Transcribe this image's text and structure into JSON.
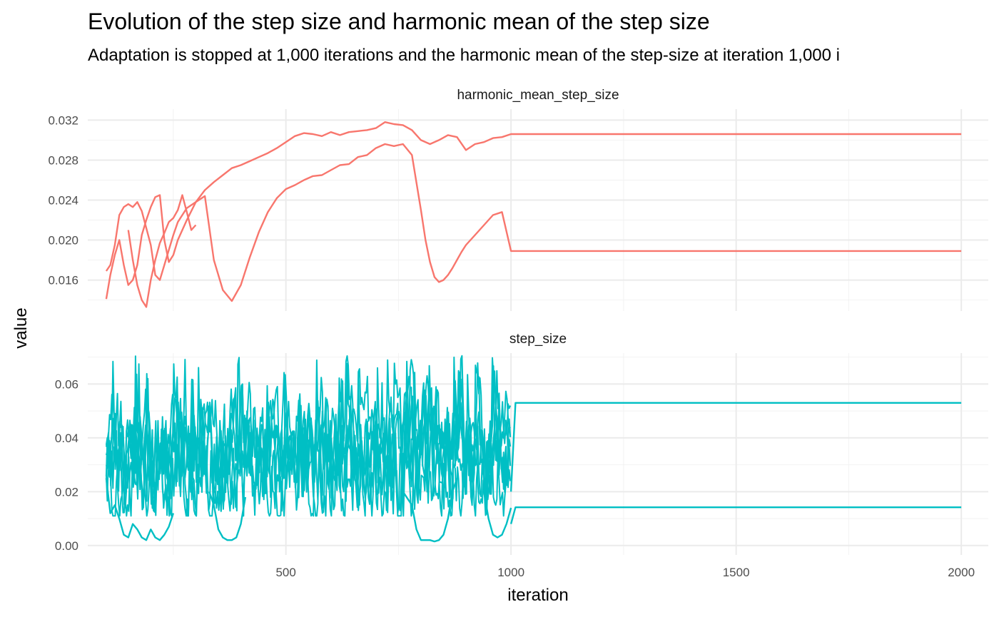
{
  "chart_data": {
    "type": "line",
    "title": "Evolution of the step size and harmonic mean of the step size",
    "subtitle": "Adaptation is stopped at 1,000 iterations and the harmonic mean of the step-size at iteration 1,000 i",
    "xlabel": "iteration",
    "ylabel": "value",
    "xlim": [
      60,
      2060
    ],
    "x_ticks": [
      500,
      1000,
      1500,
      2000
    ],
    "grid": true,
    "legend": "none",
    "panels": [
      {
        "strip": "harmonic_mean_step_size",
        "color": "#F8766D",
        "ylim": [
          0.0129,
          0.0331
        ],
        "y_ticks": [
          0.016,
          0.02,
          0.024,
          0.028,
          0.032
        ],
        "y_tick_labels": [
          "0.016",
          "0.020",
          "0.024",
          "0.028",
          "0.032"
        ],
        "series": [
          {
            "chain": 1,
            "x": [
              101,
              110,
              120,
              130,
              140,
              150,
              160,
              170,
              180,
              190,
              200,
              210,
              220,
              230,
              240,
              250,
              260,
              280,
              300,
              320,
              340,
              360,
              380,
              400,
              420,
              440,
              460,
              480,
              500,
              520,
              540,
              560,
              580,
              600,
              620,
              640,
              660,
              680,
              700,
              720,
              740,
              760,
              780,
              800,
              810,
              820,
              830,
              840,
              850,
              860,
              870,
              880,
              890,
              900,
              920,
              940,
              960,
              980,
              1000,
              1100,
              1300,
              1500,
              1700,
              1900,
              2000
            ],
            "y": [
              0.0169,
              0.0175,
              0.0195,
              0.0225,
              0.0233,
              0.0236,
              0.0233,
              0.0238,
              0.0229,
              0.0212,
              0.0195,
              0.0165,
              0.016,
              0.0175,
              0.019,
              0.0205,
              0.0218,
              0.0232,
              0.0238,
              0.0244,
              0.018,
              0.015,
              0.0139,
              0.0155,
              0.0183,
              0.0208,
              0.0228,
              0.0242,
              0.0251,
              0.0255,
              0.026,
              0.0264,
              0.0265,
              0.027,
              0.0275,
              0.0276,
              0.0283,
              0.0285,
              0.0292,
              0.0296,
              0.0294,
              0.0296,
              0.0285,
              0.023,
              0.02,
              0.0178,
              0.0163,
              0.0158,
              0.016,
              0.0165,
              0.0172,
              0.018,
              0.0188,
              0.0195,
              0.0205,
              0.0215,
              0.0225,
              0.0228,
              0.0189,
              0.0189,
              0.0189,
              0.0189,
              0.0189,
              0.0189,
              0.0189
            ]
          },
          {
            "chain": 2,
            "x": [
              101,
              110,
              120,
              130,
              140,
              150,
              160,
              170,
              180,
              190,
              200,
              210,
              220,
              230,
              240,
              250,
              260,
              280,
              300,
              320,
              340,
              360,
              380,
              400,
              420,
              440,
              460,
              480,
              500,
              520,
              540,
              560,
              580,
              600,
              620,
              640,
              660,
              680,
              700,
              720,
              740,
              760,
              780,
              800,
              820,
              840,
              860,
              880,
              900,
              920,
              940,
              960,
              980,
              1000,
              1100,
              1300,
              1500,
              1700,
              1900,
              2000
            ],
            "y": [
              0.0141,
              0.0165,
              0.0185,
              0.02,
              0.0175,
              0.0155,
              0.016,
              0.0175,
              0.0205,
              0.022,
              0.0233,
              0.0243,
              0.0245,
              0.02,
              0.0178,
              0.0185,
              0.02,
              0.022,
              0.0238,
              0.025,
              0.0258,
              0.0265,
              0.0272,
              0.0275,
              0.0279,
              0.0283,
              0.0287,
              0.0292,
              0.0298,
              0.0304,
              0.0307,
              0.0306,
              0.0304,
              0.0308,
              0.0305,
              0.0308,
              0.0309,
              0.031,
              0.0312,
              0.0318,
              0.0316,
              0.0315,
              0.031,
              0.03,
              0.0296,
              0.03,
              0.0305,
              0.0303,
              0.029,
              0.0296,
              0.0298,
              0.0302,
              0.0303,
              0.0306,
              0.0306,
              0.0306,
              0.0306,
              0.0306,
              0.0306,
              0.0306
            ]
          },
          {
            "chain": 3,
            "x": [
              150,
              160,
              170,
              180,
              190,
              200,
              210,
              220,
              230,
              240,
              250,
              260,
              270,
              280,
              290,
              300
            ],
            "y": [
              0.021,
              0.018,
              0.0155,
              0.014,
              0.0133,
              0.016,
              0.018,
              0.0197,
              0.0207,
              0.0218,
              0.0222,
              0.023,
              0.0245,
              0.0228,
              0.021,
              0.0215
            ]
          }
        ]
      },
      {
        "strip": "step_size",
        "color": "#00BFC4",
        "ylim": [
          -0.0035,
          0.0715
        ],
        "y_ticks": [
          0.0,
          0.02,
          0.04,
          0.06
        ],
        "y_tick_labels": [
          "0.00",
          "0.02",
          "0.04",
          "0.06"
        ],
        "series": [
          {
            "chain": 1,
            "x": [
              1000,
              1010,
              2000
            ],
            "y": [
              0.02,
              0.053,
              0.053
            ]
          },
          {
            "chain": 2,
            "x": [
              1000,
              1010,
              2000
            ],
            "y": [
              0.008,
              0.0142,
              0.0142
            ]
          },
          {
            "chain": 3,
            "x": [
              101,
              110,
              120,
              130,
              140,
              150,
              160,
              170,
              180,
              190,
              200,
              210,
              220,
              230,
              240,
              250
            ],
            "y": [
              0.025,
              0.012,
              0.015,
              0.01,
              0.004,
              0.003,
              0.008,
              0.006,
              0.003,
              0.002,
              0.006,
              0.003,
              0.002,
              0.004,
              0.007,
              0.012
            ]
          },
          {
            "chain": 4,
            "x": [
              330,
              340,
              350,
              360,
              370,
              380,
              390,
              400,
              410
            ],
            "y": [
              0.02,
              0.015,
              0.006,
              0.003,
              0.002,
              0.002,
              0.003,
              0.008,
              0.018
            ]
          },
          {
            "chain": 5,
            "x": [
              760,
              780,
              790,
              800,
              810,
              820,
              830,
              840,
              850,
              860,
              870,
              880
            ],
            "y": [
              0.02,
              0.015,
              0.006,
              0.002,
              0.002,
              0.002,
              0.0015,
              0.002,
              0.004,
              0.01,
              0.02,
              0.025
            ]
          },
          {
            "chain": 6,
            "x": [
              940,
              950,
              960,
              970,
              980,
              990,
              1000
            ],
            "y": [
              0.02,
              0.01,
              0.004,
              0.003,
              0.004,
              0.008,
              0.014
            ]
          }
        ],
        "noise_band": {
          "x_range": [
            101,
            1000
          ],
          "center": 0.032,
          "typical_range": [
            0.015,
            0.055
          ],
          "extremes": [
            0.001,
            0.0705
          ]
        }
      }
    ]
  }
}
